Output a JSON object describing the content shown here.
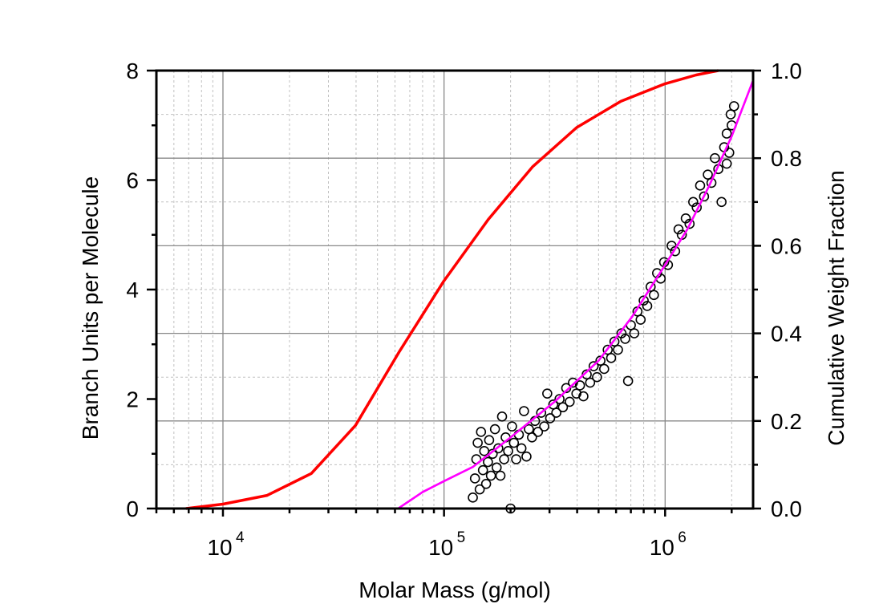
{
  "chart_data": {
    "type": "scatter",
    "xlabel": "Molar Mass (g/mol)",
    "ylabel_left": "Branch Units per Molecule",
    "ylabel_right": "Cumulative Weight Fraction",
    "x_scale": "log",
    "xlim": [
      5000,
      2500000
    ],
    "ylim_left": [
      0,
      8
    ],
    "ylim_right": [
      0,
      1
    ],
    "grid": true,
    "x_tick_labels": [
      {
        "base": "10",
        "exp": "4",
        "value": 10000
      },
      {
        "base": "10",
        "exp": "5",
        "value": 100000
      },
      {
        "base": "10",
        "exp": "6",
        "value": 1000000
      }
    ],
    "y_left_tick_labels": [
      "0",
      "2",
      "4",
      "6",
      "8"
    ],
    "y_right_tick_labels": [
      "0.0",
      "0.2",
      "0.4",
      "0.6",
      "0.8",
      "1.0"
    ],
    "colors": {
      "cumulative": "#ff0000",
      "fit": "#ff00ff",
      "points": "#000000"
    },
    "series": [
      {
        "type": "line",
        "axis": "right",
        "color": "#ff0000",
        "points": [
          [
            6800,
            0
          ],
          [
            10000,
            0.01
          ],
          [
            15850,
            0.03
          ],
          [
            25100,
            0.08
          ],
          [
            39800,
            0.19
          ],
          [
            63100,
            0.36
          ],
          [
            100000,
            0.52
          ],
          [
            158500,
            0.66
          ],
          [
            251200,
            0.78
          ],
          [
            398100,
            0.87
          ],
          [
            631000,
            0.93
          ],
          [
            1000000,
            0.97
          ],
          [
            1380000,
            0.99
          ],
          [
            1740000,
            1.0
          ]
        ]
      },
      {
        "type": "line",
        "axis": "left",
        "color": "#ff00ff",
        "points": [
          [
            62000,
            0
          ],
          [
            80000,
            0.3
          ],
          [
            100000,
            0.5
          ],
          [
            135000,
            0.76
          ],
          [
            200000,
            1.3
          ],
          [
            316000,
            1.95
          ],
          [
            500000,
            2.7
          ],
          [
            708000,
            3.5
          ],
          [
            1000000,
            4.45
          ],
          [
            1260000,
            5.1
          ],
          [
            1585000,
            5.9
          ],
          [
            2000000,
            6.8
          ],
          [
            2500000,
            7.82
          ]
        ]
      },
      {
        "type": "scatter",
        "axis": "left",
        "marker": "open-circle",
        "points": [
          [
            135000,
            0.2
          ],
          [
            138000,
            0.55
          ],
          [
            140000,
            0.9
          ],
          [
            142000,
            1.2
          ],
          [
            145000,
            0.35
          ],
          [
            147000,
            1.4
          ],
          [
            150000,
            0.7
          ],
          [
            152000,
            1.05
          ],
          [
            155000,
            0.45
          ],
          [
            158000,
            0.85
          ],
          [
            160000,
            1.25
          ],
          [
            163000,
            0.6
          ],
          [
            166000,
            1.0
          ],
          [
            170000,
            1.45
          ],
          [
            173000,
            0.75
          ],
          [
            176000,
            1.1
          ],
          [
            180000,
            0.6
          ],
          [
            183000,
            1.68
          ],
          [
            187000,
            0.9
          ],
          [
            190000,
            1.3
          ],
          [
            195000,
            1.05
          ],
          [
            200000,
            0.0
          ],
          [
            203000,
            1.5
          ],
          [
            207000,
            1.2
          ],
          [
            212000,
            0.9
          ],
          [
            218000,
            1.35
          ],
          [
            224000,
            1.1
          ],
          [
            230000,
            1.78
          ],
          [
            236000,
            0.95
          ],
          [
            242000,
            1.45
          ],
          [
            250000,
            1.3
          ],
          [
            258000,
            1.6
          ],
          [
            266000,
            1.4
          ],
          [
            275000,
            1.75
          ],
          [
            284000,
            1.5
          ],
          [
            293000,
            2.1
          ],
          [
            302000,
            1.65
          ],
          [
            312000,
            1.9
          ],
          [
            322000,
            1.75
          ],
          [
            333000,
            2.0
          ],
          [
            345000,
            1.85
          ],
          [
            357000,
            2.2
          ],
          [
            370000,
            1.95
          ],
          [
            383000,
            2.3
          ],
          [
            397000,
            2.1
          ],
          [
            412000,
            2.25
          ],
          [
            427000,
            2.05
          ],
          [
            442000,
            2.45
          ],
          [
            458000,
            2.3
          ],
          [
            475000,
            2.6
          ],
          [
            492000,
            2.4
          ],
          [
            510000,
            2.7
          ],
          [
            530000,
            2.55
          ],
          [
            550000,
            2.9
          ],
          [
            570000,
            2.75
          ],
          [
            590000,
            3.05
          ],
          [
            612000,
            2.9
          ],
          [
            635000,
            3.2
          ],
          [
            660000,
            3.1
          ],
          [
            680000,
            2.33
          ],
          [
            700000,
            3.35
          ],
          [
            725000,
            3.2
          ],
          [
            750000,
            3.6
          ],
          [
            775000,
            3.45
          ],
          [
            800000,
            3.8
          ],
          [
            830000,
            3.7
          ],
          [
            860000,
            4.05
          ],
          [
            890000,
            3.9
          ],
          [
            920000,
            4.3
          ],
          [
            955000,
            4.2
          ],
          [
            990000,
            4.5
          ],
          [
            1030000,
            4.45
          ],
          [
            1070000,
            4.8
          ],
          [
            1110000,
            4.7
          ],
          [
            1150000,
            5.1
          ],
          [
            1190000,
            5.0
          ],
          [
            1240000,
            5.3
          ],
          [
            1290000,
            5.2
          ],
          [
            1340000,
            5.6
          ],
          [
            1390000,
            5.5
          ],
          [
            1440000,
            5.9
          ],
          [
            1500000,
            5.7
          ],
          [
            1560000,
            6.1
          ],
          [
            1620000,
            5.95
          ],
          [
            1680000,
            6.4
          ],
          [
            1740000,
            6.2
          ],
          [
            1800000,
            5.6
          ],
          [
            1850000,
            6.6
          ],
          [
            1900000,
            6.3
          ],
          [
            1950000,
            6.5
          ],
          [
            2000000,
            7.0
          ],
          [
            2050000,
            7.35
          ],
          [
            1980000,
            7.2
          ],
          [
            1900000,
            6.85
          ]
        ]
      }
    ]
  }
}
